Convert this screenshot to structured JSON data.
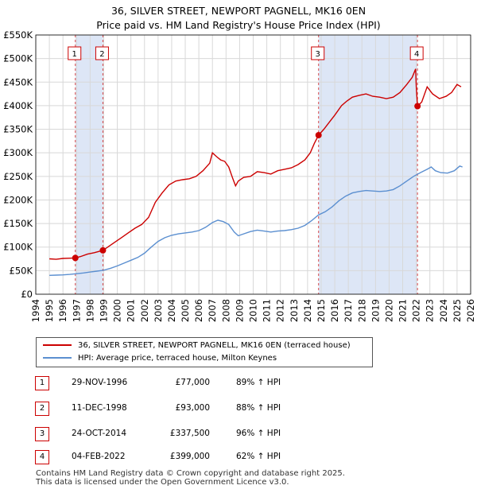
{
  "chart_data": {
    "type": "line",
    "title": "36, SILVER STREET, NEWPORT PAGNELL, MK16 0EN",
    "subtitle": "Price paid vs. HM Land Registry's House Price Index (HPI)",
    "xlim": [
      1994,
      2026
    ],
    "ylim": [
      0,
      550000
    ],
    "x_ticks": [
      1994,
      1995,
      1996,
      1997,
      1998,
      1999,
      2000,
      2001,
      2002,
      2003,
      2004,
      2005,
      2006,
      2007,
      2008,
      2009,
      2010,
      2011,
      2012,
      2013,
      2014,
      2015,
      2016,
      2017,
      2018,
      2019,
      2020,
      2021,
      2022,
      2023,
      2024,
      2025,
      2026
    ],
    "y_ticks": [
      {
        "value": 0,
        "label": "£0"
      },
      {
        "value": 50000,
        "label": "£50K"
      },
      {
        "value": 100000,
        "label": "£100K"
      },
      {
        "value": 150000,
        "label": "£150K"
      },
      {
        "value": 200000,
        "label": "£200K"
      },
      {
        "value": 250000,
        "label": "£250K"
      },
      {
        "value": 300000,
        "label": "£300K"
      },
      {
        "value": 350000,
        "label": "£350K"
      },
      {
        "value": 400000,
        "label": "£400K"
      },
      {
        "value": 450000,
        "label": "£450K"
      },
      {
        "value": 500000,
        "label": "£500K"
      },
      {
        "value": 550000,
        "label": "£550K"
      }
    ],
    "grid": true,
    "colors": {
      "property": "#cc0000",
      "hpi": "#5b8fd0",
      "shade": "#dde6f6",
      "grid": "#d8d8d8"
    },
    "series": [
      {
        "name": "36, SILVER STREET, NEWPORT PAGNELL, MK16 0EN (terraced house)",
        "points": [
          [
            1995.0,
            75000
          ],
          [
            1995.5,
            74000
          ],
          [
            1996.0,
            76000
          ],
          [
            1996.5,
            76500
          ],
          [
            1996.91,
            77000
          ],
          [
            1997.3,
            80000
          ],
          [
            1997.8,
            85000
          ],
          [
            1998.3,
            88000
          ],
          [
            1998.94,
            93000
          ],
          [
            1999.3,
            100000
          ],
          [
            1999.8,
            110000
          ],
          [
            2000.3,
            120000
          ],
          [
            2000.8,
            130000
          ],
          [
            2001.3,
            140000
          ],
          [
            2001.8,
            148000
          ],
          [
            2002.3,
            163000
          ],
          [
            2002.8,
            195000
          ],
          [
            2003.3,
            215000
          ],
          [
            2003.8,
            232000
          ],
          [
            2004.3,
            240000
          ],
          [
            2004.8,
            243000
          ],
          [
            2005.3,
            245000
          ],
          [
            2005.8,
            250000
          ],
          [
            2006.3,
            262000
          ],
          [
            2006.8,
            278000
          ],
          [
            2007.0,
            300000
          ],
          [
            2007.3,
            292000
          ],
          [
            2007.6,
            285000
          ],
          [
            2007.9,
            282000
          ],
          [
            2008.2,
            270000
          ],
          [
            2008.5,
            245000
          ],
          [
            2008.7,
            230000
          ],
          [
            2008.9,
            240000
          ],
          [
            2009.3,
            248000
          ],
          [
            2009.8,
            250000
          ],
          [
            2010.3,
            260000
          ],
          [
            2010.8,
            258000
          ],
          [
            2011.3,
            255000
          ],
          [
            2011.8,
            262000
          ],
          [
            2012.3,
            265000
          ],
          [
            2012.8,
            268000
          ],
          [
            2013.3,
            275000
          ],
          [
            2013.8,
            285000
          ],
          [
            2014.2,
            300000
          ],
          [
            2014.5,
            320000
          ],
          [
            2014.81,
            337500
          ],
          [
            2015.2,
            350000
          ],
          [
            2015.6,
            365000
          ],
          [
            2016.0,
            380000
          ],
          [
            2016.5,
            400000
          ],
          [
            2016.9,
            410000
          ],
          [
            2017.3,
            418000
          ],
          [
            2017.8,
            422000
          ],
          [
            2018.3,
            425000
          ],
          [
            2018.8,
            420000
          ],
          [
            2019.3,
            418000
          ],
          [
            2019.8,
            415000
          ],
          [
            2020.3,
            418000
          ],
          [
            2020.8,
            428000
          ],
          [
            2021.3,
            445000
          ],
          [
            2021.7,
            460000
          ],
          [
            2021.95,
            478000
          ],
          [
            2022.0,
            440000
          ],
          [
            2022.09,
            399000
          ],
          [
            2022.4,
            408000
          ],
          [
            2022.8,
            440000
          ],
          [
            2023.2,
            425000
          ],
          [
            2023.7,
            415000
          ],
          [
            2024.2,
            420000
          ],
          [
            2024.6,
            428000
          ],
          [
            2025.0,
            445000
          ],
          [
            2025.3,
            440000
          ]
        ]
      },
      {
        "name": "HPI: Average price, terraced house, Milton Keynes",
        "points": [
          [
            1995.0,
            40000
          ],
          [
            1995.5,
            40500
          ],
          [
            1996.0,
            41000
          ],
          [
            1996.5,
            42000
          ],
          [
            1997.0,
            43500
          ],
          [
            1997.5,
            45000
          ],
          [
            1998.0,
            47000
          ],
          [
            1998.5,
            49000
          ],
          [
            1999.0,
            51000
          ],
          [
            1999.5,
            55000
          ],
          [
            2000.0,
            60000
          ],
          [
            2000.5,
            66000
          ],
          [
            2001.0,
            72000
          ],
          [
            2001.5,
            78000
          ],
          [
            2002.0,
            87000
          ],
          [
            2002.5,
            100000
          ],
          [
            2003.0,
            112000
          ],
          [
            2003.5,
            120000
          ],
          [
            2004.0,
            125000
          ],
          [
            2004.5,
            128000
          ],
          [
            2005.0,
            130000
          ],
          [
            2005.5,
            132000
          ],
          [
            2006.0,
            135000
          ],
          [
            2006.5,
            142000
          ],
          [
            2007.0,
            152000
          ],
          [
            2007.4,
            157000
          ],
          [
            2007.8,
            154000
          ],
          [
            2008.2,
            148000
          ],
          [
            2008.6,
            132000
          ],
          [
            2008.9,
            124000
          ],
          [
            2009.3,
            128000
          ],
          [
            2009.8,
            133000
          ],
          [
            2010.3,
            136000
          ],
          [
            2010.8,
            134000
          ],
          [
            2011.3,
            132000
          ],
          [
            2011.8,
            134000
          ],
          [
            2012.3,
            135000
          ],
          [
            2012.8,
            137000
          ],
          [
            2013.3,
            140000
          ],
          [
            2013.8,
            146000
          ],
          [
            2014.3,
            156000
          ],
          [
            2014.8,
            168000
          ],
          [
            2015.3,
            175000
          ],
          [
            2015.8,
            185000
          ],
          [
            2016.3,
            198000
          ],
          [
            2016.8,
            208000
          ],
          [
            2017.3,
            215000
          ],
          [
            2017.8,
            218000
          ],
          [
            2018.3,
            220000
          ],
          [
            2018.8,
            219000
          ],
          [
            2019.3,
            218000
          ],
          [
            2019.8,
            219000
          ],
          [
            2020.3,
            222000
          ],
          [
            2020.8,
            230000
          ],
          [
            2021.3,
            240000
          ],
          [
            2021.8,
            250000
          ],
          [
            2022.3,
            258000
          ],
          [
            2022.8,
            265000
          ],
          [
            2023.1,
            270000
          ],
          [
            2023.4,
            262000
          ],
          [
            2023.8,
            258000
          ],
          [
            2024.3,
            257000
          ],
          [
            2024.8,
            262000
          ],
          [
            2025.2,
            272000
          ],
          [
            2025.4,
            270000
          ]
        ]
      }
    ],
    "sales": [
      {
        "n": "1",
        "year": 1996.91,
        "price": 77000,
        "date": "29-NOV-1996",
        "price_label": "£77,000",
        "hpi_label": "89% ↑ HPI"
      },
      {
        "n": "2",
        "year": 1998.94,
        "price": 93000,
        "date": "11-DEC-1998",
        "price_label": "£93,000",
        "hpi_label": "88% ↑ HPI"
      },
      {
        "n": "3",
        "year": 2014.81,
        "price": 337500,
        "date": "24-OCT-2014",
        "price_label": "£337,500",
        "hpi_label": "96% ↑ HPI"
      },
      {
        "n": "4",
        "year": 2022.09,
        "price": 399000,
        "date": "04-FEB-2022",
        "price_label": "£399,000",
        "hpi_label": "62% ↑ HPI"
      }
    ]
  },
  "legend": {
    "property_label": "36, SILVER STREET, NEWPORT PAGNELL, MK16 0EN (terraced house)",
    "hpi_label": "HPI: Average price, terraced house, Milton Keynes"
  },
  "footer": {
    "line1": "Contains HM Land Registry data © Crown copyright and database right 2025.",
    "line2": "This data is licensed under the Open Government Licence v3.0."
  }
}
